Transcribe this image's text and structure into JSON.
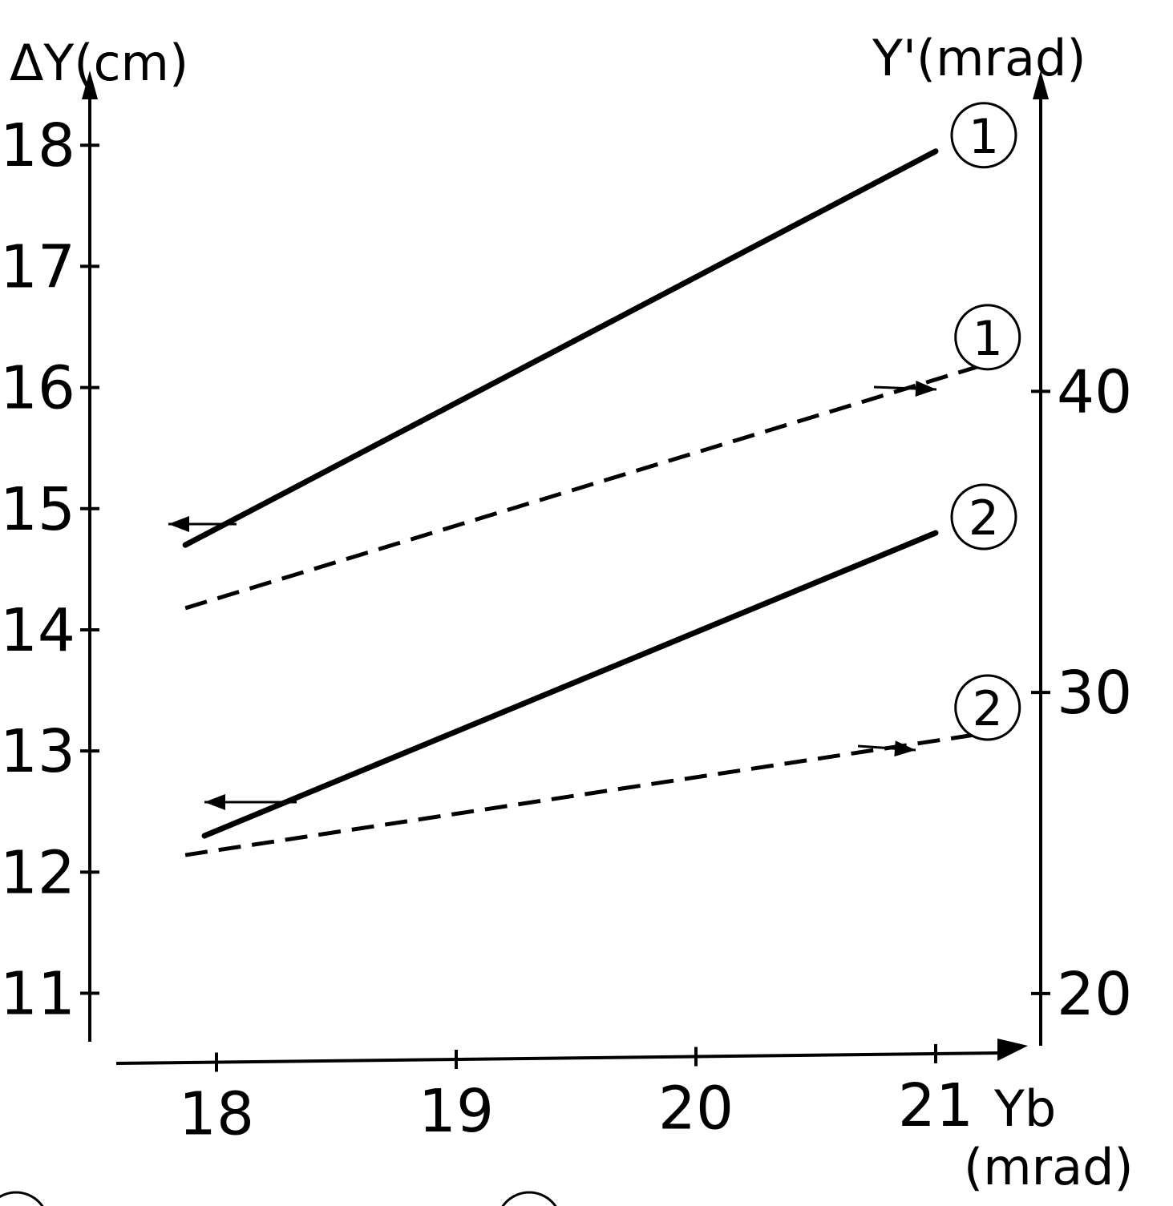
{
  "chart_data": {
    "type": "line",
    "left_axis": {
      "label": "ΔY(cm)",
      "ticks": [
        "11",
        "12",
        "13",
        "14",
        "15",
        "16",
        "17",
        "18"
      ],
      "tick_values": [
        11,
        12,
        13,
        14,
        15,
        16,
        17,
        18
      ],
      "range": [
        10.6,
        19
      ]
    },
    "right_axis": {
      "label": "Y'(mrad)",
      "ticks": [
        "20",
        "30",
        "40"
      ],
      "tick_values": [
        20,
        30,
        40
      ],
      "range": [
        18.4,
        52.2
      ]
    },
    "x_axis": {
      "label": "Yb",
      "unit": "(mrad)",
      "ticks": [
        "18",
        "19",
        "20",
        "21"
      ],
      "tick_values": [
        18,
        19,
        20,
        21
      ],
      "range": [
        17.4,
        21.4
      ]
    },
    "series": [
      {
        "marker_label": "1",
        "axis": "left",
        "style": "solid",
        "x": [
          17.87,
          21.0
        ],
        "y": [
          14.7,
          17.95
        ]
      },
      {
        "marker_label": "1",
        "axis": "right",
        "style": "dashed",
        "x": [
          17.87,
          21.25
        ],
        "y": [
          32.8,
          41.0
        ]
      },
      {
        "marker_label": "2",
        "axis": "left",
        "style": "solid",
        "x": [
          17.95,
          21.0
        ],
        "y": [
          12.3,
          14.8
        ]
      },
      {
        "marker_label": "2",
        "axis": "right",
        "style": "dashed",
        "x": [
          17.87,
          21.25
        ],
        "y": [
          24.6,
          28.7
        ]
      }
    ],
    "grid": false,
    "legend": "none"
  }
}
